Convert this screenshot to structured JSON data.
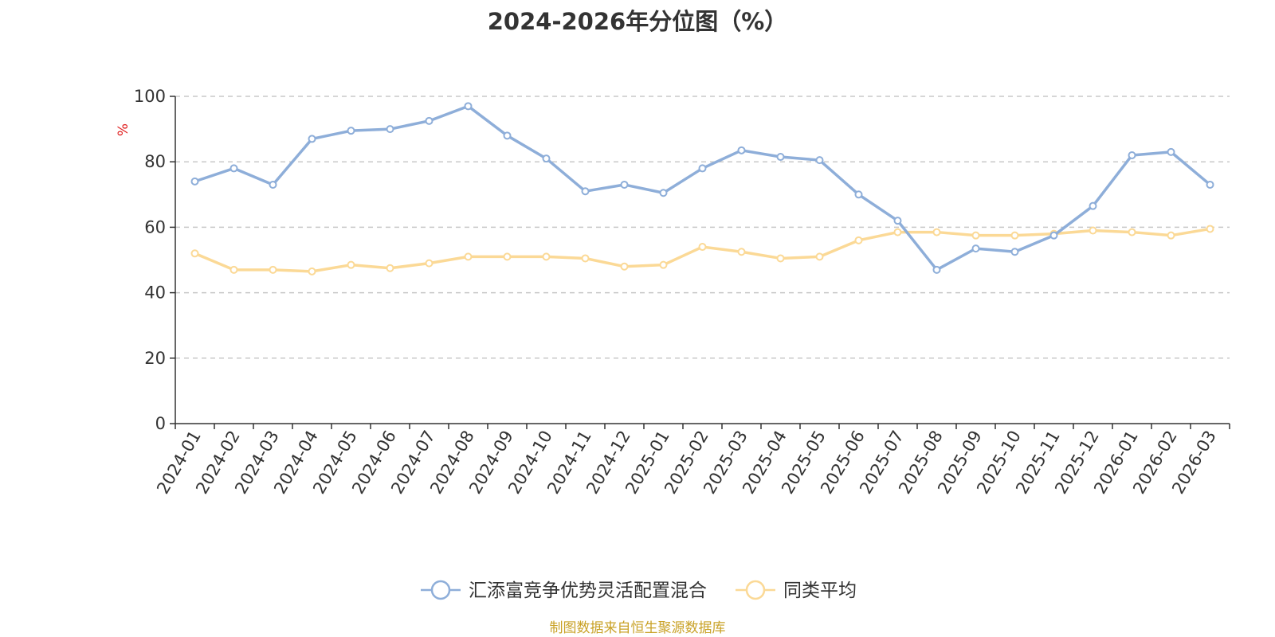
{
  "chart_data": {
    "type": "line",
    "title": "2024-2026年分位图（%）",
    "ylabel": "%",
    "xlabel": "",
    "ylim": [
      0,
      100
    ],
    "yticks": [
      0,
      20,
      40,
      60,
      80,
      100
    ],
    "grid": true,
    "legend": "bottom-center",
    "categories": [
      "2024-01",
      "2024-02",
      "2024-03",
      "2024-04",
      "2024-05",
      "2024-06",
      "2024-07",
      "2024-08",
      "2024-09",
      "2024-10",
      "2024-11",
      "2024-12",
      "2025-01",
      "2025-02",
      "2025-03",
      "2025-04",
      "2025-05",
      "2025-06",
      "2025-07",
      "2025-08",
      "2025-09",
      "2025-10",
      "2025-11",
      "2025-12",
      "2026-01",
      "2026-02",
      "2026-03"
    ],
    "series": [
      {
        "name": "汇添富竞争优势灵活配置混合",
        "color": "#8eaed9",
        "values": [
          74,
          78,
          73,
          87,
          89.5,
          90,
          92.5,
          97,
          88,
          81,
          71,
          73,
          70.5,
          78,
          83.5,
          81.5,
          80.5,
          70,
          62,
          47,
          53.5,
          52.5,
          57.5,
          66.5,
          82,
          83,
          73
        ]
      },
      {
        "name": "同类平均",
        "color": "#fbd996",
        "values": [
          52,
          47,
          47,
          46.5,
          48.5,
          47.5,
          49,
          51,
          51,
          51,
          50.5,
          48,
          48.5,
          54,
          52.5,
          50.5,
          51,
          56,
          58.5,
          58.5,
          57.5,
          57.5,
          58,
          59,
          58.5,
          57.5,
          59.5
        ]
      }
    ]
  },
  "footer": {
    "source": "制图数据来自恒生聚源数据库"
  }
}
